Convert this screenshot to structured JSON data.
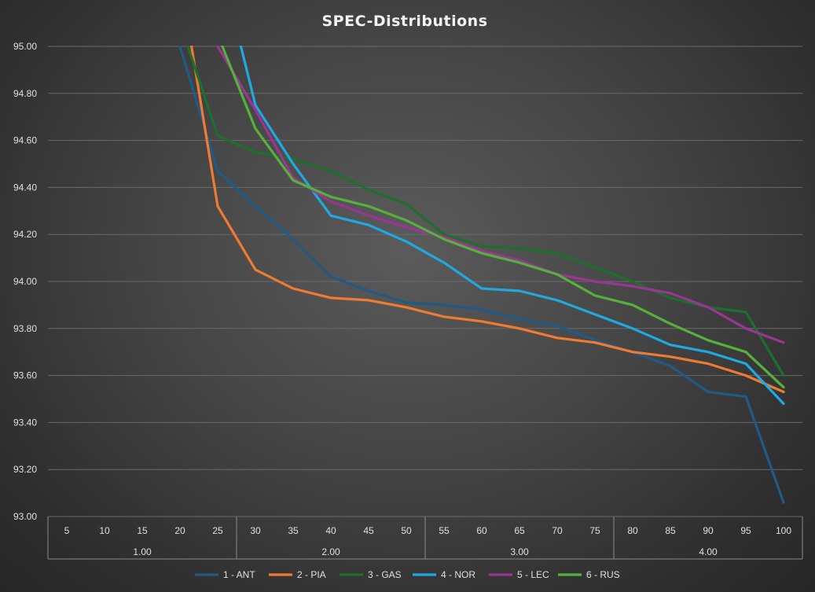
{
  "chart_data": {
    "type": "line",
    "title": "SPEC-Distributions",
    "xlabel": "",
    "ylabel": "",
    "ylim": [
      93.0,
      95.0
    ],
    "y_ticks": [
      "93.00",
      "93.20",
      "93.40",
      "93.60",
      "93.80",
      "94.00",
      "94.20",
      "94.40",
      "94.60",
      "94.80",
      "95.00"
    ],
    "x": [
      5,
      10,
      15,
      20,
      25,
      30,
      35,
      40,
      45,
      50,
      55,
      60,
      65,
      70,
      75,
      80,
      85,
      90,
      95,
      100
    ],
    "x_groups": [
      {
        "label": "1.00",
        "from": 5,
        "to": 25
      },
      {
        "label": "2.00",
        "from": 30,
        "to": 50
      },
      {
        "label": "3.00",
        "from": 55,
        "to": 75
      },
      {
        "label": "4.00",
        "from": 80,
        "to": 100
      }
    ],
    "series": [
      {
        "name": "1 - ANT",
        "color": "#1f5b86",
        "values": [
          null,
          null,
          null,
          95.0,
          94.47,
          94.32,
          94.18,
          94.02,
          93.96,
          93.91,
          93.9,
          93.88,
          93.84,
          93.81,
          93.75,
          93.7,
          93.64,
          93.53,
          93.51,
          93.06
        ]
      },
      {
        "name": "2 - PIA",
        "color": "#ee7b31",
        "values": [
          null,
          null,
          null,
          95.3,
          94.32,
          94.05,
          93.97,
          93.93,
          93.92,
          93.89,
          93.85,
          93.83,
          93.8,
          93.76,
          93.74,
          93.7,
          93.68,
          93.65,
          93.6,
          93.53
        ]
      },
      {
        "name": "3 - GAS",
        "color": "#1e6e2e",
        "values": [
          null,
          null,
          null,
          95.1,
          94.62,
          94.55,
          94.52,
          94.47,
          94.39,
          94.33,
          94.2,
          94.15,
          94.14,
          94.12,
          94.06,
          94.0,
          93.93,
          93.89,
          93.87,
          93.6
        ]
      },
      {
        "name": "4 - NOR",
        "color": "#20a8e0",
        "values": [
          null,
          null,
          null,
          null,
          95.4,
          94.75,
          94.5,
          94.28,
          94.24,
          94.17,
          94.08,
          93.97,
          93.96,
          93.92,
          93.86,
          93.8,
          93.73,
          93.7,
          93.65,
          93.48
        ]
      },
      {
        "name": "5 - LEC",
        "color": "#9a3594",
        "values": [
          null,
          null,
          null,
          null,
          95.0,
          94.73,
          94.44,
          94.34,
          94.28,
          94.23,
          94.19,
          94.13,
          94.09,
          94.03,
          94.0,
          93.98,
          93.95,
          93.89,
          93.8,
          93.74
        ]
      },
      {
        "name": "6 - RUS",
        "color": "#56b03c",
        "values": [
          null,
          null,
          null,
          95.4,
          95.05,
          94.65,
          94.43,
          94.36,
          94.32,
          94.26,
          94.18,
          94.12,
          94.08,
          94.03,
          93.94,
          93.9,
          93.82,
          93.75,
          93.7,
          93.55
        ]
      }
    ],
    "legend_position": "bottom",
    "grid": true
  }
}
